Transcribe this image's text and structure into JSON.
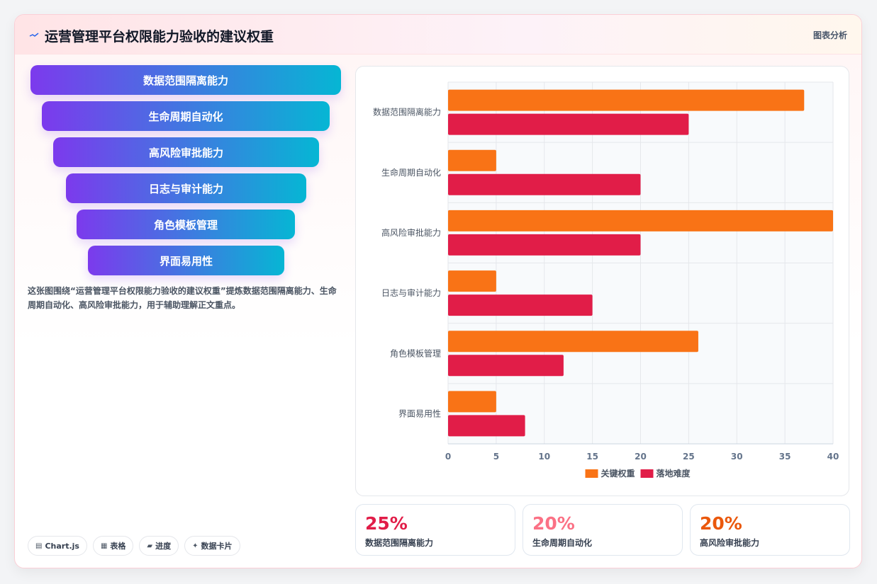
{
  "header": {
    "title": "运营管理平台权限能力验收的建议权重",
    "right_label": "图表分析"
  },
  "funnel": {
    "items": [
      "数据范围隔离能力",
      "生命周期自动化",
      "高风险审批能力",
      "日志与审计能力",
      "角色模板管理",
      "界面易用性"
    ]
  },
  "description": "这张图围绕“运营管理平台权限能力验收的建议权重”提炼数据范围隔离能力、生命周期自动化、高风险审批能力，用于辅助理解正文重点。",
  "chips": [
    {
      "icon": "chart-icon",
      "glyph": "▤",
      "label": "Chart.js"
    },
    {
      "icon": "table-icon",
      "glyph": "▦",
      "label": "表格"
    },
    {
      "icon": "progress-icon",
      "glyph": "▰",
      "label": "进度"
    },
    {
      "icon": "sparkle-icon",
      "glyph": "✦",
      "label": "数据卡片"
    }
  ],
  "stats": [
    {
      "value": "25%",
      "label": "数据范围隔离能力",
      "color": "#e11d48"
    },
    {
      "value": "20%",
      "label": "生命周期自动化",
      "color": "#fb7185"
    },
    {
      "value": "20%",
      "label": "高风险审批能力",
      "color": "#ea580c"
    }
  ],
  "chart_data": {
    "type": "bar",
    "orientation": "horizontal",
    "categories": [
      "数据范围隔离能力",
      "生命周期自动化",
      "高风险审批能力",
      "日志与审计能力",
      "角色模板管理",
      "界面易用性"
    ],
    "series": [
      {
        "name": "关键权重",
        "color": "#f97316",
        "values": [
          37,
          5,
          40,
          5,
          26,
          5
        ]
      },
      {
        "name": "落地难度",
        "color": "#e11d48",
        "values": [
          25,
          20,
          20,
          15,
          12,
          8
        ]
      }
    ],
    "xlim": [
      0,
      40
    ],
    "xticks": [
      0,
      5,
      10,
      15,
      20,
      25,
      30,
      35,
      40
    ],
    "grid": true,
    "legend_position": "bottom"
  }
}
